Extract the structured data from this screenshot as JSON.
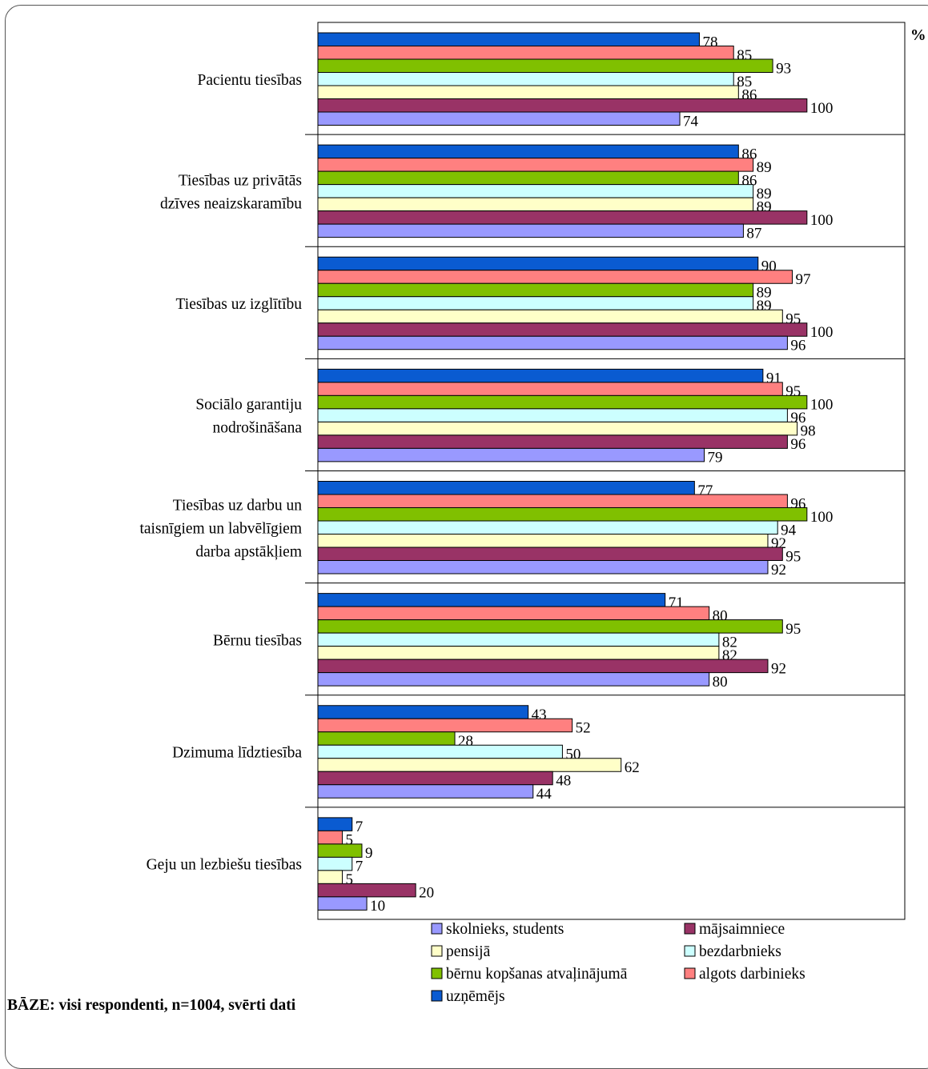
{
  "unit_label": "%",
  "base_note": "BĀZE: visi respondenti, n=1004, svērti dati",
  "colors": {
    "uznemejs": "#0a5bd1",
    "algots": "#ff8080",
    "berna": "#80c000",
    "bezdarb": "#ccffff",
    "pensija": "#ffffc8",
    "majsaim": "#993366",
    "skolnieks": "#9999ff"
  },
  "chart_data": {
    "type": "bar",
    "orientation": "horizontal",
    "xlim": [
      0,
      120
    ],
    "unit": "%",
    "categories": [
      [
        "Pacientu tiesības"
      ],
      [
        "Tiesības uz privātās",
        "dzīves neaizskaramību"
      ],
      [
        "Tiesības uz izglītību"
      ],
      [
        "Sociālo garantiju",
        "nodrošināšana"
      ],
      [
        "Tiesības uz darbu un",
        "taisnīgiem un labvēlīgiem",
        "darba apstākļiem"
      ],
      [
        "Bērnu tiesības"
      ],
      [
        "Dzimuma līdztiesība"
      ],
      [
        "Geju un lezbiešu tiesības"
      ]
    ],
    "series": [
      {
        "name": "uzņēmējs",
        "color": "#0a5bd1",
        "values": [
          78,
          86,
          90,
          91,
          77,
          71,
          43,
          7
        ]
      },
      {
        "name": "algots darbinieks",
        "color": "#ff8080",
        "values": [
          85,
          89,
          97,
          95,
          96,
          80,
          52,
          5
        ]
      },
      {
        "name": "bērnu kopšanas atvaļinājumā",
        "color": "#80c000",
        "values": [
          93,
          86,
          89,
          100,
          100,
          95,
          28,
          9
        ]
      },
      {
        "name": "bezdarbnieks",
        "color": "#ccffff",
        "values": [
          85,
          89,
          89,
          96,
          94,
          82,
          50,
          7
        ]
      },
      {
        "name": "pensijā",
        "color": "#ffffc8",
        "values": [
          86,
          89,
          95,
          98,
          92,
          82,
          62,
          5
        ]
      },
      {
        "name": "mājsaimniece",
        "color": "#993366",
        "values": [
          100,
          100,
          100,
          96,
          95,
          92,
          48,
          20
        ]
      },
      {
        "name": "skolnieks, students",
        "color": "#9999ff",
        "values": [
          74,
          87,
          96,
          79,
          92,
          80,
          44,
          10
        ]
      }
    ],
    "legend": {
      "placement": "bottom",
      "order": [
        [
          "skolnieks, students",
          "mājsaimniece"
        ],
        [
          "pensijā",
          "bezdarbnieks"
        ],
        [
          "bērnu kopšanas atvaļinājumā",
          "algots darbinieks"
        ],
        [
          "uzņēmējs"
        ]
      ]
    }
  }
}
